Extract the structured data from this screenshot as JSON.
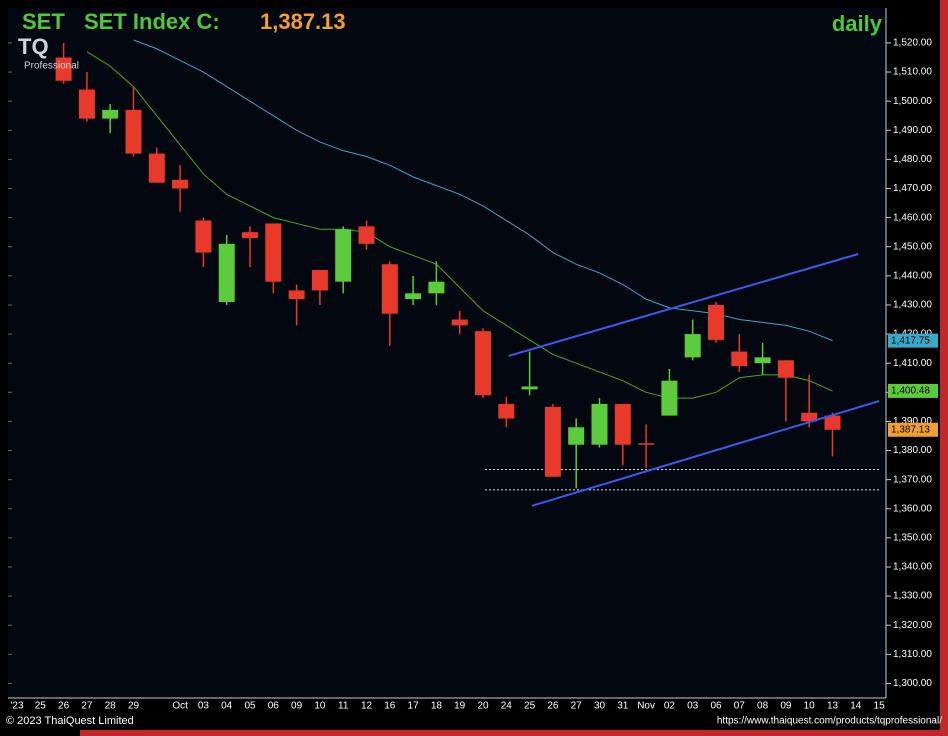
{
  "chart_data": {
    "type": "candlestick",
    "symbol": "SET",
    "title": "SET Index C:",
    "close_label": "1,387.13",
    "period": "daily",
    "logo": "TQ",
    "logo_sub": "Professional",
    "copyright": "© 2023 ThaiQuest Limited",
    "url": "https://www.thaiquest.com/products/tqprofessional/",
    "categories": [
      "'23",
      "25",
      "26",
      "27",
      "28",
      "29",
      null,
      "Oct",
      "03",
      "04",
      "05",
      "06",
      "09",
      "10",
      "11",
      "12",
      "16",
      "17",
      "18",
      "19",
      "20",
      "24",
      "25",
      "26",
      "27",
      "30",
      "31",
      "Nov",
      "02",
      "03",
      "06",
      "07",
      "08",
      "09",
      "10",
      "13",
      "14",
      "15"
    ],
    "open": [
      null,
      null,
      1515,
      1504,
      1494,
      1497,
      1482,
      1473,
      1459,
      1431,
      1455,
      1458,
      1435,
      1442,
      1438,
      1457,
      1444,
      1432,
      1434,
      1425,
      1421,
      1396,
      1401,
      1395,
      1382,
      1382,
      1396,
      1382.5,
      1392,
      1412,
      1430,
      1414,
      1410,
      1411,
      1393,
      1392,
      null,
      null
    ],
    "high": [
      null,
      null,
      1520,
      1510,
      1499,
      1505,
      1484,
      1478,
      1460,
      1454,
      1457,
      1458,
      1437,
      1442,
      1457,
      1459,
      1445,
      1440,
      1445,
      1428,
      1422,
      1398.5,
      1414,
      1396,
      1391,
      1398,
      1396,
      1389,
      1408,
      1425,
      1431,
      1420,
      1417,
      1411,
      1406,
      1393,
      null,
      null
    ],
    "low": [
      null,
      null,
      1506,
      1493,
      1489,
      1481,
      1472,
      1462,
      1443,
      1430,
      1443,
      1434,
      1423,
      1430,
      1434,
      1449,
      1416,
      1430,
      1430,
      1420,
      1398,
      1388,
      1399,
      1371,
      1367,
      1381,
      1375,
      1374,
      1392,
      1411,
      1417,
      1407,
      1406,
      1390,
      1388,
      1378,
      null,
      null
    ],
    "close": [
      null,
      null,
      1507,
      1494,
      1497,
      1482,
      1472,
      1470,
      1448,
      1451,
      1453,
      1438,
      1432,
      1435,
      1456,
      1451,
      1427,
      1434,
      1438,
      1423,
      1399,
      1391,
      1402,
      1371,
      1388,
      1396,
      1382,
      1382,
      1404,
      1420,
      1418,
      1409,
      1412,
      1405,
      1390,
      1387.13,
      null,
      null
    ],
    "up_color": "#5ccc3c",
    "down_color": "#e8392a",
    "moving_averages": [
      {
        "color": "#3fae2a",
        "values": [
          null,
          null,
          null,
          1517,
          1512,
          1505,
          1495,
          1485,
          1475,
          1468,
          1464,
          1460,
          1458,
          1456,
          1456,
          1455,
          1450,
          1447,
          1444,
          1436,
          1428,
          1423,
          1418,
          1413,
          1410,
          1407,
          1404,
          1400,
          1398,
          1398,
          1400,
          1405,
          1406,
          1406,
          1404,
          1400.48,
          null,
          null
        ]
      },
      {
        "color": "#3aa8c8",
        "values": [
          null,
          null,
          null,
          null,
          null,
          1521,
          1518,
          1514,
          1510,
          1505,
          1500,
          1495,
          1490,
          1486,
          1483,
          1481,
          1478,
          1474,
          1471,
          1468,
          1464,
          1459,
          1454,
          1448,
          1444,
          1441,
          1437,
          1432,
          1429,
          1428,
          1427,
          1425,
          1424,
          1423,
          1421,
          1417.75,
          null,
          null
        ]
      }
    ],
    "trendlines": [
      {
        "color": "#3b5bf0",
        "start": [
          21.1,
          1412.5
        ],
        "end": [
          36.1,
          1447.5
        ]
      },
      {
        "color": "#3b5bf0",
        "start": [
          22.1,
          1361
        ],
        "end": [
          37,
          1397
        ]
      }
    ],
    "hlines": [
      1373.5,
      1366.5
    ],
    "price_labels": [
      {
        "value": 1417.75,
        "label": "1,417.75",
        "color": "#3aa8c8"
      },
      {
        "value": 1400.48,
        "label": "1,400.48",
        "color": "#5ccc3c"
      },
      {
        "value": 1387.13,
        "label": "1,387.13",
        "color": "#f0a030"
      }
    ],
    "ylim": [
      1295,
      1532
    ],
    "yticks": [
      {
        "value": 1300,
        "label": "1,300.00"
      },
      {
        "value": 1310,
        "label": "1,310.00"
      },
      {
        "value": 1320,
        "label": "1,320.00"
      },
      {
        "value": 1330,
        "label": "1,330.00"
      },
      {
        "value": 1340,
        "label": "1,340.00"
      },
      {
        "value": 1350,
        "label": "1,350.00"
      },
      {
        "value": 1360,
        "label": "1,360.00"
      },
      {
        "value": 1370,
        "label": "1,370.00"
      },
      {
        "value": 1380,
        "label": "1,380.00"
      },
      {
        "value": 1390,
        "label": "1,390.00"
      },
      {
        "value": 1400,
        "label": "1,400.00"
      },
      {
        "value": 1410,
        "label": "1,410.00"
      },
      {
        "value": 1420,
        "label": "1,420.00"
      },
      {
        "value": 1430,
        "label": "1,430.00"
      },
      {
        "value": 1440,
        "label": "1,440.00"
      },
      {
        "value": 1450,
        "label": "1,450.00"
      },
      {
        "value": 1460,
        "label": "1,460.00"
      },
      {
        "value": 1470,
        "label": "1,470.00"
      },
      {
        "value": 1480,
        "label": "1,480.00"
      },
      {
        "value": 1490,
        "label": "1,490.00"
      },
      {
        "value": 1500,
        "label": "1,500.00"
      },
      {
        "value": 1510,
        "label": "1,510.00"
      },
      {
        "value": 1520,
        "label": "1,520.00"
      }
    ]
  }
}
